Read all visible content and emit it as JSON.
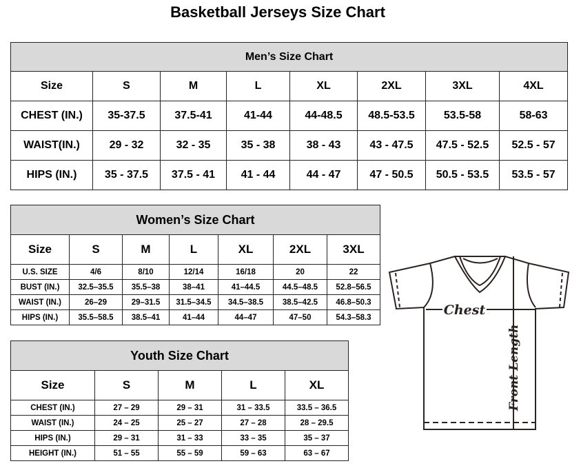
{
  "title": "Basketball Jerseys Size Chart",
  "men": {
    "heading": "Men’s Size Chart",
    "header": [
      "Size",
      "S",
      "M",
      "L",
      "XL",
      "2XL",
      "3XL",
      "4XL"
    ],
    "rows": [
      [
        "CHEST (IN.)",
        "35-37.5",
        "37.5-41",
        "41-44",
        "44-48.5",
        "48.5-53.5",
        "53.5-58",
        "58-63"
      ],
      [
        "WAIST(IN.)",
        "29 - 32",
        "32 - 35",
        "35 - 38",
        "38 - 43",
        "43 - 47.5",
        "47.5 - 52.5",
        "52.5 - 57"
      ],
      [
        "HIPS (IN.)",
        "35 - 37.5",
        "37.5 - 41",
        "41 - 44",
        "44 - 47",
        "47 - 50.5",
        "50.5 - 53.5",
        "53.5 - 57"
      ]
    ]
  },
  "women": {
    "heading": "Women’s Size Chart",
    "header": [
      "Size",
      "S",
      "M",
      "L",
      "XL",
      "2XL",
      "3XL"
    ],
    "rows": [
      [
        "U.S.  SIZE",
        "4/6",
        "8/10",
        "12/14",
        "16/18",
        "20",
        "22"
      ],
      [
        "BUST  (IN.)",
        "32.5–35.5",
        "35.5–38",
        "38–41",
        "41–44.5",
        "44.5–48.5",
        "52.8–56.5"
      ],
      [
        "WAIST  (IN.)",
        "26–29",
        "29–31.5",
        "31.5–34.5",
        "34.5–38.5",
        "38.5–42.5",
        "46.8–50.3"
      ],
      [
        "HIPS  (IN.)",
        "35.5–58.5",
        "38.5–41",
        "41–44",
        "44–47",
        "47–50",
        "54.3–58.3"
      ]
    ]
  },
  "youth": {
    "heading": "Youth Size Chart",
    "header": [
      "Size",
      "S",
      "M",
      "L",
      "XL"
    ],
    "rows": [
      [
        "CHEST  (IN.)",
        "27  –  29",
        "29  –  31",
        "31  –  33.5",
        "33.5  –  36.5"
      ],
      [
        "WAIST  (IN.)",
        "24  –  25",
        "25  –  27",
        "27  –  28",
        "28  –  29.5"
      ],
      [
        "HIPS  (IN.)",
        "29  –  31",
        "31  –  33",
        "33  –  35",
        "35  –  37"
      ],
      [
        "HEIGHT  (IN.)",
        "51  –  55",
        "55  –  59",
        "59  –  63",
        "63  –  67"
      ]
    ]
  },
  "diagram": {
    "chest_label": "Chest",
    "length_label": "Front Length",
    "line_color": "#2a2220"
  }
}
